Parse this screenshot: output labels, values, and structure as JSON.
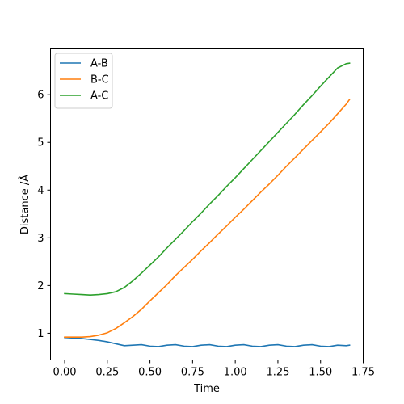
{
  "chart_data": {
    "type": "line",
    "title": "",
    "xlabel": "Time",
    "ylabel": "Distance /Å",
    "xlim": [
      -0.083,
      1.75
    ],
    "ylim": [
      0.44,
      6.96
    ],
    "xticks": [
      0.0,
      0.25,
      0.5,
      0.75,
      1.0,
      1.25,
      1.5,
      1.75
    ],
    "xtick_labels": [
      "0.00",
      "0.25",
      "0.50",
      "0.75",
      "1.00",
      "1.25",
      "1.50",
      "1.75"
    ],
    "yticks": [
      1,
      2,
      3,
      4,
      5,
      6
    ],
    "ytick_labels": [
      "1",
      "2",
      "3",
      "4",
      "5",
      "6"
    ],
    "grid": false,
    "legend_position": "top-left",
    "series": [
      {
        "name": "A-B",
        "color": "#1f77b4",
        "x": [
          0.0,
          0.05,
          0.1,
          0.15,
          0.2,
          0.25,
          0.3,
          0.35,
          0.4,
          0.45,
          0.5,
          0.55,
          0.6,
          0.65,
          0.7,
          0.75,
          0.8,
          0.85,
          0.9,
          0.95,
          1.0,
          1.05,
          1.1,
          1.15,
          1.2,
          1.25,
          1.3,
          1.35,
          1.4,
          1.45,
          1.5,
          1.55,
          1.6,
          1.65,
          1.67
        ],
        "y": [
          0.91,
          0.9,
          0.89,
          0.87,
          0.85,
          0.82,
          0.78,
          0.74,
          0.75,
          0.76,
          0.73,
          0.72,
          0.75,
          0.76,
          0.73,
          0.72,
          0.75,
          0.76,
          0.73,
          0.72,
          0.75,
          0.76,
          0.73,
          0.72,
          0.75,
          0.76,
          0.73,
          0.72,
          0.75,
          0.76,
          0.73,
          0.72,
          0.75,
          0.74,
          0.75
        ]
      },
      {
        "name": "B-C",
        "color": "#ff7f0e",
        "x": [
          0.0,
          0.05,
          0.1,
          0.15,
          0.2,
          0.25,
          0.3,
          0.35,
          0.4,
          0.45,
          0.5,
          0.55,
          0.6,
          0.65,
          0.7,
          0.75,
          0.8,
          0.85,
          0.9,
          0.95,
          1.0,
          1.05,
          1.1,
          1.15,
          1.2,
          1.25,
          1.3,
          1.35,
          1.4,
          1.45,
          1.5,
          1.55,
          1.6,
          1.65,
          1.67
        ],
        "y": [
          0.92,
          0.92,
          0.92,
          0.93,
          0.96,
          1.01,
          1.1,
          1.22,
          1.35,
          1.5,
          1.68,
          1.85,
          2.02,
          2.21,
          2.38,
          2.55,
          2.73,
          2.9,
          3.08,
          3.25,
          3.43,
          3.6,
          3.78,
          3.96,
          4.13,
          4.31,
          4.5,
          4.68,
          4.86,
          5.04,
          5.22,
          5.4,
          5.6,
          5.8,
          5.9
        ]
      },
      {
        "name": "A-C",
        "color": "#2ca02c",
        "x": [
          0.0,
          0.05,
          0.1,
          0.15,
          0.2,
          0.25,
          0.3,
          0.35,
          0.4,
          0.45,
          0.5,
          0.55,
          0.6,
          0.65,
          0.7,
          0.75,
          0.8,
          0.85,
          0.9,
          0.95,
          1.0,
          1.05,
          1.1,
          1.15,
          1.2,
          1.25,
          1.3,
          1.35,
          1.4,
          1.45,
          1.5,
          1.55,
          1.6,
          1.65,
          1.67
        ],
        "y": [
          1.83,
          1.82,
          1.81,
          1.8,
          1.81,
          1.83,
          1.87,
          1.96,
          2.1,
          2.26,
          2.43,
          2.6,
          2.79,
          2.97,
          3.15,
          3.34,
          3.52,
          3.71,
          3.89,
          4.08,
          4.26,
          4.45,
          4.64,
          4.83,
          5.02,
          5.21,
          5.4,
          5.59,
          5.79,
          5.98,
          6.18,
          6.37,
          6.56,
          6.65,
          6.66
        ]
      }
    ]
  }
}
